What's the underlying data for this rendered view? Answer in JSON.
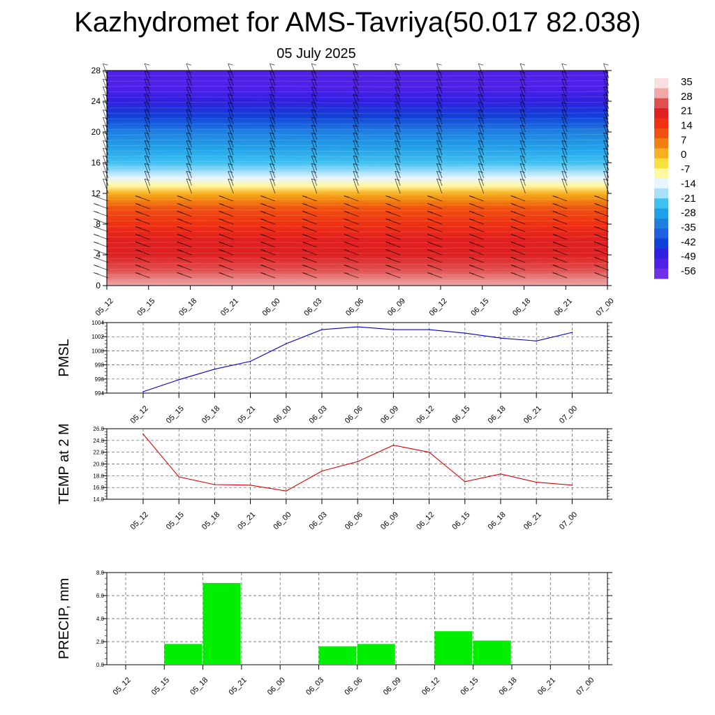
{
  "title": "Kazhydromet for AMS-Tavriya(50.017 82.038)",
  "subtitle": "05 July 2025",
  "colors": {
    "pmsl_line": "#0000cc",
    "temp_line": "#dd0000",
    "precip_bar": "#00ee00",
    "grid": "#555555",
    "barb": "#000000"
  },
  "chart_data": [
    {
      "type": "heatmap",
      "title": "",
      "x_ticklabels": [
        "05_12",
        "05_15",
        "05_18",
        "05_21",
        "06_00",
        "06_03",
        "06_06",
        "06_09",
        "06_12",
        "06_15",
        "06_18",
        "06_21",
        "07_00"
      ],
      "y_ticks": [
        0,
        4,
        8,
        12,
        16,
        20,
        24,
        28
      ],
      "ylim": [
        0,
        28
      ],
      "colorbar_labels": [
        "35",
        "28",
        "21",
        "14",
        "7",
        "0",
        "-7",
        "-14",
        "-21",
        "-28",
        "-35",
        "-42",
        "-49",
        "-56"
      ],
      "colorbar_colors": [
        "#f8e0e0",
        "#f0a8a8",
        "#e05050",
        "#e02020",
        "#f03010",
        "#f05010",
        "#f08010",
        "#f8b020",
        "#f8e040",
        "#fff8a0",
        "#e8f4ff",
        "#a8e0f8",
        "#40c0f0",
        "#20a0e8",
        "#2080e0",
        "#2060e0",
        "#1040d8",
        "#3020e0",
        "#5020e8",
        "#7030e8"
      ],
      "temperature_profile": {
        "levels": [
          0,
          2,
          4,
          6,
          8,
          10,
          11,
          12,
          13,
          14,
          16,
          18,
          20,
          22,
          24,
          26,
          28
        ],
        "values": [
          30,
          27,
          22,
          18,
          14,
          9,
          5,
          1,
          -10,
          -17,
          -24,
          -30,
          -36,
          -44,
          -52,
          -57,
          -56
        ]
      },
      "wind_barbs": "wind barbs at each 3-hour step and every level"
    },
    {
      "type": "line",
      "ylabel": "PMSL",
      "categories": [
        "05_12",
        "05_15",
        "05_18",
        "05_21",
        "06_00",
        "06_03",
        "06_06",
        "06_09",
        "06_12",
        "06_15",
        "06_18",
        "06_21",
        "07_00"
      ],
      "values": [
        994.2,
        995.9,
        997.4,
        998.5,
        1001.0,
        1003.0,
        1003.4,
        1003.0,
        1003.0,
        1002.5,
        1001.8,
        1001.4,
        1002.6
      ],
      "ylim": [
        994,
        1004
      ],
      "yticks": [
        "994",
        "996",
        "998",
        "1000",
        "1002",
        "1004"
      ]
    },
    {
      "type": "line",
      "ylabel": "TEMP at 2 M",
      "categories": [
        "05_12",
        "05_15",
        "05_18",
        "05_21",
        "06_00",
        "06_03",
        "06_06",
        "06_09",
        "06_12",
        "06_15",
        "06_18",
        "06_21",
        "07_00"
      ],
      "values": [
        25.1,
        17.8,
        16.5,
        16.4,
        15.4,
        18.8,
        20.4,
        23.2,
        22.0,
        17.0,
        18.3,
        16.9,
        16.4
      ],
      "ylim": [
        14,
        26
      ],
      "yticks": [
        "14.0",
        "16.0",
        "18.0",
        "20.0",
        "22.0",
        "24.0",
        "26.0"
      ]
    },
    {
      "type": "bar",
      "ylabel": "PRECIP, mm",
      "categories": [
        "05_12",
        "05_15",
        "05_18",
        "05_21",
        "06_00",
        "06_03",
        "06_06",
        "06_09",
        "06_12",
        "06_15",
        "06_18",
        "06_21",
        "07_00"
      ],
      "values": [
        0,
        1.8,
        7.1,
        0,
        0,
        1.6,
        1.8,
        0,
        2.9,
        2.1,
        0,
        0,
        0
      ],
      "ylim": [
        0,
        8
      ],
      "yticks": [
        "0.0",
        "2.0",
        "4.0",
        "6.0",
        "8.0"
      ]
    }
  ]
}
